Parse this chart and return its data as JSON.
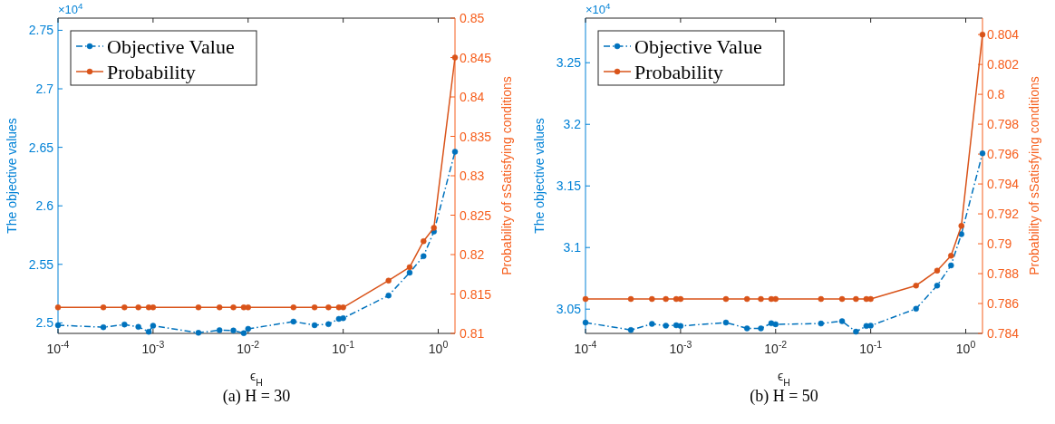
{
  "chart_data": [
    {
      "type": "line",
      "title": "(a) H = 30",
      "xlabel": "ϵ$_{H}$",
      "ylabel": "The objective values",
      "y2label": "Probability of sSatisfying conditions",
      "annotations": [
        "×10$^{4}$"
      ],
      "log": "x",
      "grid": false,
      "legend": "top left",
      "marker": "circle",
      "x": [
        0.0001,
        0.0003,
        0.0005,
        0.0007,
        0.0009,
        0.001,
        0.003,
        0.005,
        0.007,
        0.009,
        0.01,
        0.03,
        0.05,
        0.07,
        0.09,
        0.1,
        0.3,
        0.5,
        0.7,
        0.9,
        1.5
      ],
      "xlim": [
        0.0001,
        1.5
      ],
      "xticks": [
        {
          "value": 0.0001,
          "label": "10$^{-4}$"
        },
        {
          "value": 0.001,
          "label": "10$^{-3}$"
        },
        {
          "value": 0.01,
          "label": "10$^{-2}$"
        },
        {
          "value": 0.1,
          "label": "10$^{-1}$"
        },
        {
          "value": 1,
          "label": "10$^{0}$"
        }
      ],
      "ylim": [
        2.491,
        2.7604
      ],
      "yticks": [
        2.5,
        2.55,
        2.6,
        2.65,
        2.7,
        2.75
      ],
      "y2lim": [
        0.81,
        0.85
      ],
      "y2ticks": [
        0.81,
        0.815,
        0.82,
        0.825,
        0.83,
        0.835,
        0.84,
        0.845,
        0.85
      ],
      "series": [
        {
          "name": "Objective Value",
          "color": "#0072bd",
          "line_style": "dashed",
          "values": [
            2.498,
            2.4963,
            2.4986,
            2.4966,
            2.4924,
            2.4975,
            2.4915,
            2.4938,
            2.4935,
            2.4912,
            2.4949,
            2.5011,
            2.498,
            2.4989,
            2.5034,
            2.504,
            2.5234,
            2.5429,
            2.557,
            2.578,
            2.6462
          ]
        },
        {
          "name": "Probability",
          "color": "#d95319",
          "axis": "y2",
          "line_style": "solid",
          "values": [
            0.8133,
            0.8133,
            0.8133,
            0.8133,
            0.8133,
            0.8133,
            0.8133,
            0.8133,
            0.8133,
            0.8133,
            0.8133,
            0.8133,
            0.8133,
            0.8133,
            0.8133,
            0.8133,
            0.8167,
            0.8184,
            0.8217,
            0.8234,
            0.845
          ]
        }
      ]
    },
    {
      "type": "line",
      "title": "(b) H = 50",
      "xlabel": "ϵ$_{H}$",
      "ylabel": "The objective values",
      "y2label": "Probability of sSatisfying conditions",
      "annotations": [
        "×10$^{4}$"
      ],
      "log": "x",
      "grid": false,
      "legend": "top left",
      "marker": "circle",
      "x": [
        0.0001,
        0.0003,
        0.0005,
        0.0007,
        0.0009,
        0.001,
        0.003,
        0.005,
        0.007,
        0.009,
        0.01,
        0.03,
        0.05,
        0.07,
        0.09,
        0.1,
        0.3,
        0.5,
        0.7,
        0.9,
        1.5
      ],
      "xlim": [
        0.0001,
        1.5
      ],
      "xticks": [
        {
          "value": 0.0001,
          "label": "10$^{-4}$"
        },
        {
          "value": 0.001,
          "label": "10$^{-3}$"
        },
        {
          "value": 0.01,
          "label": "10$^{-2}$"
        },
        {
          "value": 0.1,
          "label": "10$^{-1}$"
        },
        {
          "value": 1,
          "label": "10$^{0}$"
        }
      ],
      "ylim": [
        3.0303,
        3.2862
      ],
      "yticks": [
        3.05,
        3.1,
        3.15,
        3.2,
        3.25
      ],
      "y2lim": [
        0.784,
        0.8051
      ],
      "y2ticks": [
        0.784,
        0.786,
        0.788,
        0.79,
        0.792,
        0.794,
        0.796,
        0.798,
        0.8,
        0.802,
        0.804
      ],
      "series": [
        {
          "name": "Objective Value",
          "color": "#0072bd",
          "line_style": "dashed",
          "values": [
            3.0391,
            3.0331,
            3.038,
            3.0366,
            3.0369,
            3.0363,
            3.0391,
            3.0344,
            3.0344,
            3.0385,
            3.0377,
            3.0383,
            3.0402,
            3.0317,
            3.0363,
            3.0366,
            3.0503,
            3.0691,
            3.0855,
            3.1109,
            3.1764
          ]
        },
        {
          "name": "Probability",
          "color": "#d95319",
          "axis": "y2",
          "line_style": "solid",
          "values": [
            0.7863,
            0.7863,
            0.7863,
            0.7863,
            0.7863,
            0.7863,
            0.7863,
            0.7863,
            0.7863,
            0.7863,
            0.7863,
            0.7863,
            0.7863,
            0.7863,
            0.7863,
            0.7863,
            0.7872,
            0.7882,
            0.7892,
            0.7912,
            0.804
          ]
        }
      ]
    }
  ]
}
